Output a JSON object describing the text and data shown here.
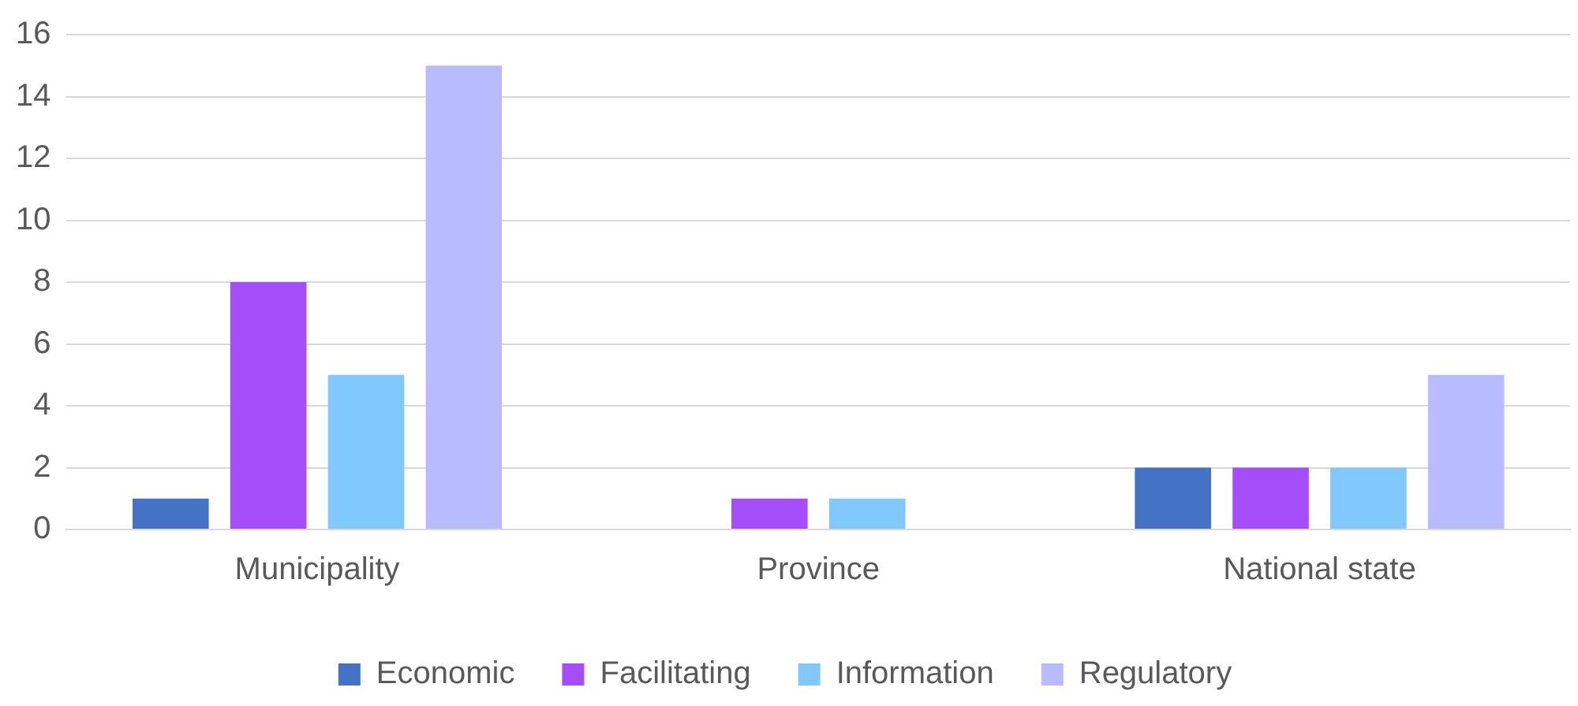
{
  "chart_data": {
    "type": "bar",
    "categories": [
      "Municipality",
      "Province",
      "National state"
    ],
    "series": [
      {
        "name": "Economic",
        "color": "#4472c4",
        "values": [
          1,
          0,
          2
        ]
      },
      {
        "name": "Facilitating",
        "color": "#a64dfa",
        "values": [
          8,
          1,
          2
        ]
      },
      {
        "name": "Information",
        "color": "#80c8ff",
        "values": [
          5,
          1,
          2
        ]
      },
      {
        "name": "Regulatory",
        "color": "#b8bcff",
        "values": [
          15,
          0,
          5
        ]
      }
    ],
    "ylim": [
      0,
      16
    ],
    "yticks": [
      0,
      2,
      4,
      6,
      8,
      10,
      12,
      14,
      16
    ],
    "grid": "y",
    "legend": "bottom"
  }
}
